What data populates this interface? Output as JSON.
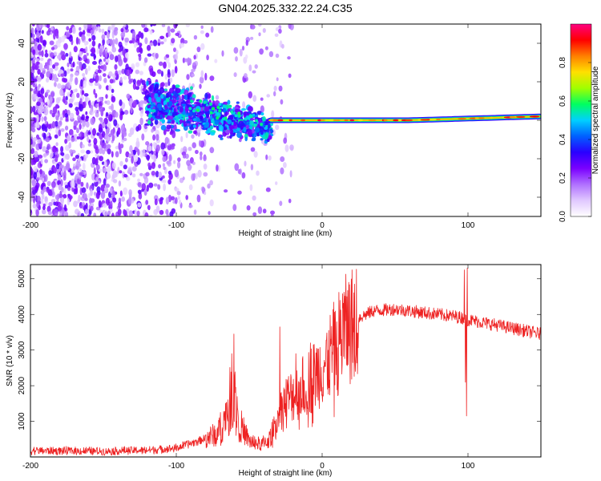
{
  "title": "GN04.2025.332.22.24.C35",
  "chart_data": [
    {
      "type": "heatmap",
      "name": "spectrogram",
      "xlabel": "Height of straight line (km)",
      "ylabel": "Frequency (Hz)",
      "xlim": [
        -200,
        150
      ],
      "ylim": [
        -50,
        50
      ],
      "xticks": [
        -200,
        -100,
        0,
        100
      ],
      "yticks": [
        -40,
        -20,
        0,
        20,
        40
      ],
      "colorbar": {
        "label": "Normalized spectral amplitude",
        "range": [
          0,
          1
        ],
        "ticks": [
          "0.0",
          "0.2",
          "0.4",
          "0.6",
          "0.8"
        ],
        "colors": [
          "#ffffff",
          "#e0c8ff",
          "#b070ff",
          "#7a00ff",
          "#2a00ff",
          "#0060ff",
          "#00d0ff",
          "#00ff60",
          "#a0ff00",
          "#ffe000",
          "#ff8000",
          "#ff0000",
          "#ff0080"
        ]
      },
      "regions": [
        {
          "name": "noise",
          "x": [
            -200,
            -75
          ],
          "freq_spread_hz": 50,
          "amplitude": [
            0.05,
            0.3
          ]
        },
        {
          "name": "onset",
          "x": [
            -120,
            -35
          ],
          "freq_center_hz": [
            10,
            -5
          ],
          "freq_spread_hz": 12,
          "amplitude": [
            0.2,
            0.55
          ]
        },
        {
          "name": "carrier",
          "x": [
            -35,
            150
          ],
          "freq_hz": [
            0,
            2
          ],
          "amplitude": [
            0.7,
            0.95
          ]
        }
      ]
    },
    {
      "type": "line",
      "name": "snr",
      "xlabel": "Height of straight line (km)",
      "ylabel": "SNR (10 * v/v)",
      "xlim": [
        -200,
        150
      ],
      "ylim": [
        0,
        5400
      ],
      "xticks": [
        -200,
        -100,
        0,
        100
      ],
      "yticks": [
        1000,
        2000,
        3000,
        4000,
        5000
      ],
      "color": "#ee2222",
      "envelope": [
        {
          "x": -200,
          "y": 180
        },
        {
          "x": -150,
          "y": 160
        },
        {
          "x": -120,
          "y": 190
        },
        {
          "x": -100,
          "y": 250
        },
        {
          "x": -85,
          "y": 450
        },
        {
          "x": -75,
          "y": 600
        },
        {
          "x": -68,
          "y": 900
        },
        {
          "x": -64,
          "y": 1500
        },
        {
          "x": -61,
          "y": 2000
        },
        {
          "x": -59,
          "y": 1500
        },
        {
          "x": -56,
          "y": 900
        },
        {
          "x": -50,
          "y": 450
        },
        {
          "x": -42,
          "y": 350
        },
        {
          "x": -36,
          "y": 500
        },
        {
          "x": -31,
          "y": 1100
        },
        {
          "x": -25,
          "y": 1600
        },
        {
          "x": -15,
          "y": 1900
        },
        {
          "x": -5,
          "y": 2300
        },
        {
          "x": 5,
          "y": 2800
        },
        {
          "x": 15,
          "y": 3500
        },
        {
          "x": 25,
          "y": 3900
        },
        {
          "x": 35,
          "y": 4100
        },
        {
          "x": 50,
          "y": 4150
        },
        {
          "x": 70,
          "y": 4050
        },
        {
          "x": 90,
          "y": 3950
        },
        {
          "x": 97,
          "y": 3900
        },
        {
          "x": 100,
          "y": 3850
        },
        {
          "x": 120,
          "y": 3700
        },
        {
          "x": 150,
          "y": 3450
        }
      ],
      "spikes": [
        {
          "x": -60.5,
          "y": 3450
        },
        {
          "x": -62,
          "y": 2900
        },
        {
          "x": -29,
          "y": 3650
        },
        {
          "x": -18,
          "y": 2900
        },
        {
          "x": -8,
          "y": 3200
        },
        {
          "x": 14,
          "y": 4580
        },
        {
          "x": 17,
          "y": 4500
        },
        {
          "x": 97.5,
          "y": 5250
        },
        {
          "x": 99.5,
          "y": 5300
        }
      ],
      "dips": [
        {
          "x": 99,
          "y": 1150
        },
        {
          "x": 98.3,
          "y": 2100
        }
      ]
    }
  ]
}
